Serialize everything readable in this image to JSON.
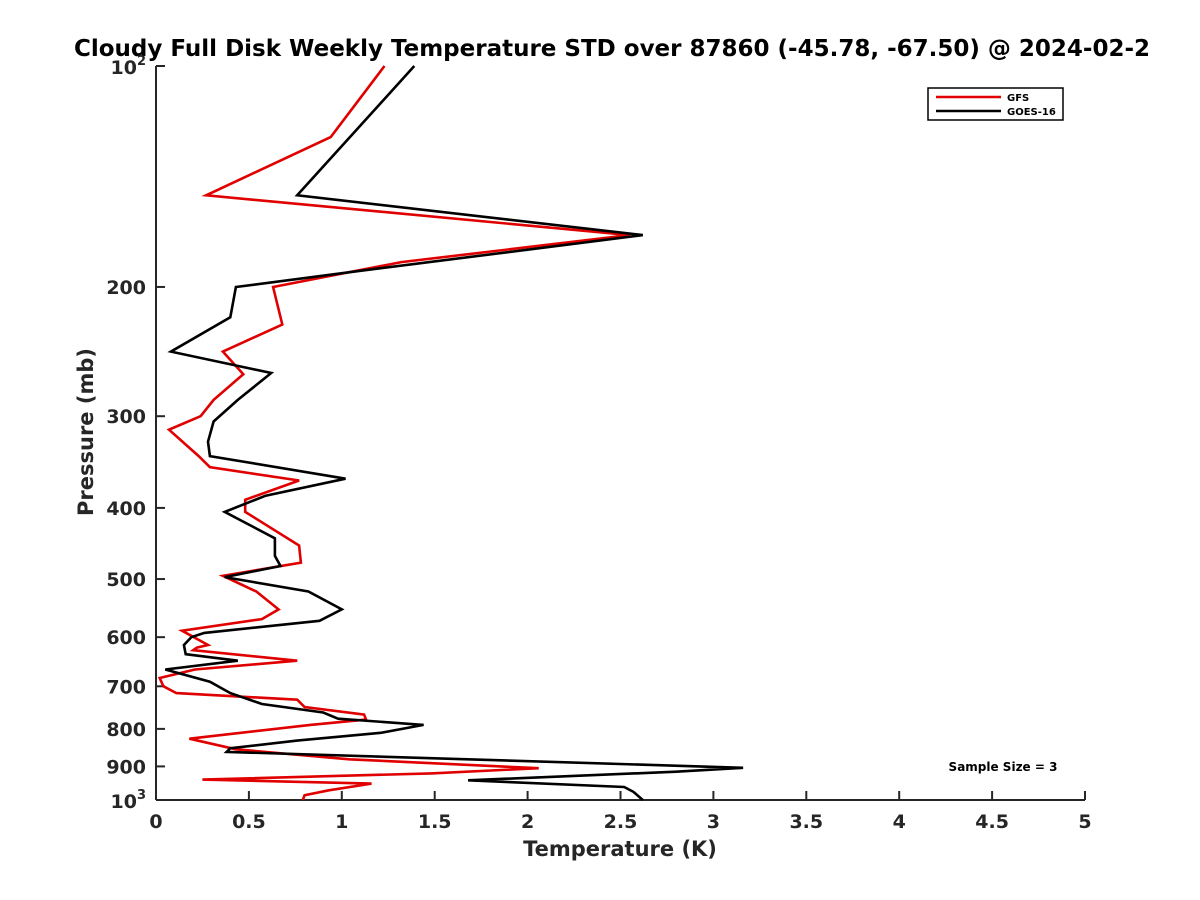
{
  "chart_data": {
    "type": "line",
    "title": "Cloudy Full Disk Weekly Temperature STD over 87860 (-45.78, -67.50) @ 2024-02-2",
    "xlabel": "Temperature (K)",
    "ylabel": "Pressure (mb)",
    "xlim": [
      0,
      5
    ],
    "ylim": [
      100,
      1000
    ],
    "yscale": "log",
    "y_reversed": true,
    "grid": false,
    "legend_position": "top-right",
    "xticks": [
      "0",
      "0.5",
      "1",
      "1.5",
      "2",
      "2.5",
      "3",
      "3.5",
      "4",
      "4.5",
      "5"
    ],
    "yticks": [
      {
        "value": 100,
        "base": "10",
        "exp": "2"
      },
      {
        "value": 200,
        "label": "200"
      },
      {
        "value": 300,
        "label": "300"
      },
      {
        "value": 400,
        "label": "400"
      },
      {
        "value": 500,
        "label": "500"
      },
      {
        "value": 600,
        "label": "600"
      },
      {
        "value": 700,
        "label": "700"
      },
      {
        "value": 800,
        "label": "800"
      },
      {
        "value": 900,
        "label": "900"
      },
      {
        "value": 1000,
        "base": "10",
        "exp": "3"
      }
    ],
    "annotation": "Sample Size = 3",
    "series": [
      {
        "name": "GFS",
        "color": "#e00000",
        "points": [
          [
            1.23,
            100
          ],
          [
            0.94,
            125
          ],
          [
            0.27,
            150
          ],
          [
            2.55,
            170
          ],
          [
            1.32,
            185
          ],
          [
            0.63,
            200
          ],
          [
            0.68,
            225
          ],
          [
            0.36,
            245
          ],
          [
            0.47,
            263
          ],
          [
            0.31,
            285
          ],
          [
            0.24,
            300
          ],
          [
            0.07,
            313
          ],
          [
            0.23,
            340
          ],
          [
            0.29,
            352
          ],
          [
            0.77,
            367
          ],
          [
            0.48,
            390
          ],
          [
            0.48,
            405
          ],
          [
            0.77,
            450
          ],
          [
            0.78,
            475
          ],
          [
            0.36,
            495
          ],
          [
            0.54,
            520
          ],
          [
            0.66,
            550
          ],
          [
            0.57,
            567
          ],
          [
            0.14,
            588
          ],
          [
            0.28,
            615
          ],
          [
            0.22,
            620
          ],
          [
            0.2,
            625
          ],
          [
            0.76,
            646
          ],
          [
            0.21,
            664
          ],
          [
            0.02,
            682
          ],
          [
            0.04,
            700
          ],
          [
            0.11,
            715
          ],
          [
            0.76,
            730
          ],
          [
            0.8,
            747
          ],
          [
            1.12,
            765
          ],
          [
            1.13,
            777
          ],
          [
            0.83,
            790
          ],
          [
            0.18,
            825
          ],
          [
            0.43,
            853
          ],
          [
            1.04,
            880
          ],
          [
            2.06,
            905
          ],
          [
            1.48,
            920
          ],
          [
            0.25,
            938
          ],
          [
            1.16,
            950
          ],
          [
            0.93,
            970
          ],
          [
            0.8,
            985
          ],
          [
            0.79,
            1000
          ]
        ]
      },
      {
        "name": "GOES-16",
        "color": "#000000",
        "points": [
          [
            1.39,
            100
          ],
          [
            0.76,
            150
          ],
          [
            2.62,
            170
          ],
          [
            1.11,
            190
          ],
          [
            0.43,
            200
          ],
          [
            0.4,
            220
          ],
          [
            0.08,
            245
          ],
          [
            0.62,
            262
          ],
          [
            0.44,
            285
          ],
          [
            0.31,
            305
          ],
          [
            0.28,
            325
          ],
          [
            0.29,
            340
          ],
          [
            1.02,
            365
          ],
          [
            0.59,
            385
          ],
          [
            0.37,
            405
          ],
          [
            0.64,
            440
          ],
          [
            0.64,
            465
          ],
          [
            0.67,
            480
          ],
          [
            0.37,
            497
          ],
          [
            0.82,
            520
          ],
          [
            1.0,
            550
          ],
          [
            0.88,
            570
          ],
          [
            0.26,
            592
          ],
          [
            0.19,
            600
          ],
          [
            0.15,
            615
          ],
          [
            0.16,
            633
          ],
          [
            0.44,
            646
          ],
          [
            0.05,
            664
          ],
          [
            0.29,
            690
          ],
          [
            0.4,
            715
          ],
          [
            0.57,
            740
          ],
          [
            0.9,
            760
          ],
          [
            0.98,
            775
          ],
          [
            1.44,
            790
          ],
          [
            1.21,
            810
          ],
          [
            0.76,
            830
          ],
          [
            0.4,
            850
          ],
          [
            0.38,
            860
          ],
          [
            3.16,
            904
          ],
          [
            2.8,
            915
          ],
          [
            1.68,
            940
          ],
          [
            2.52,
            960
          ],
          [
            2.57,
            975
          ],
          [
            2.62,
            1000
          ]
        ]
      }
    ]
  }
}
